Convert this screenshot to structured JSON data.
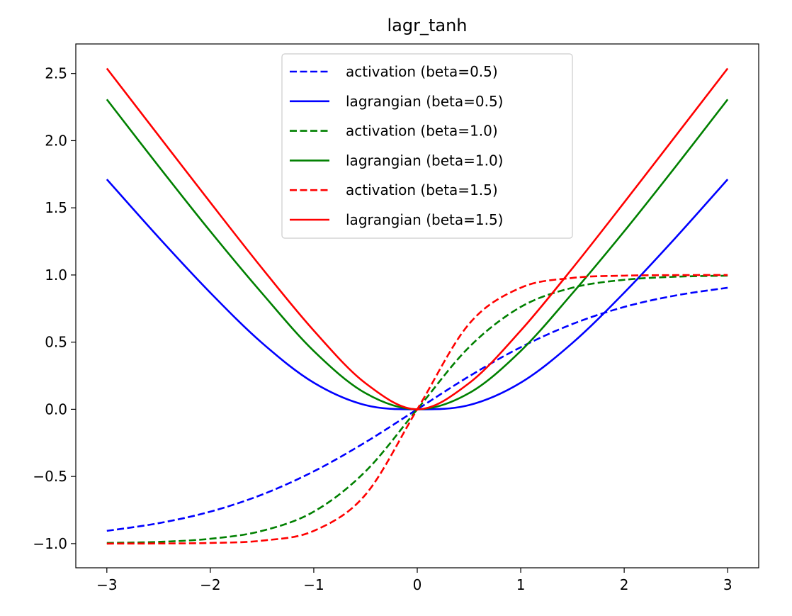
{
  "chart_data": {
    "type": "line",
    "title": "lagr_tanh",
    "xlabel": "",
    "ylabel": "",
    "xlim": [
      -3.3,
      3.3
    ],
    "ylim": [
      -1.18,
      2.72
    ],
    "grid": false,
    "legend_position": "upper center",
    "x_ticks": [
      -3,
      -2,
      -1,
      0,
      1,
      2,
      3
    ],
    "x_tick_labels": [
      "−3",
      "−2",
      "−1",
      "0",
      "1",
      "2",
      "3"
    ],
    "y_ticks": [
      -1.0,
      -0.5,
      0.0,
      0.5,
      1.0,
      1.5,
      2.0,
      2.5
    ],
    "y_tick_labels": [
      "−1.0",
      "−0.5",
      "0.0",
      "0.5",
      "1.0",
      "1.5",
      "2.0",
      "2.5"
    ],
    "x": [
      -3.0,
      -2.5,
      -2.0,
      -1.5,
      -1.0,
      -0.5,
      0.0,
      0.5,
      1.0,
      1.5,
      2.0,
      2.5,
      3.0
    ],
    "series": [
      {
        "name": "activation (beta=0.5)",
        "color": "#0000ff",
        "style": "dashed",
        "values": [
          -0.905,
          -0.848,
          -0.762,
          -0.635,
          -0.462,
          -0.245,
          0.0,
          0.245,
          0.462,
          0.635,
          0.762,
          0.848,
          0.905
        ]
      },
      {
        "name": "lagrangian (beta=0.5)",
        "color": "#0000ff",
        "style": "solid",
        "values": [
          1.712,
          1.28,
          0.868,
          0.494,
          0.198,
          0.031,
          0.0,
          0.031,
          0.198,
          0.494,
          0.868,
          1.28,
          1.712
        ]
      },
      {
        "name": "activation (beta=1.0)",
        "color": "#008000",
        "style": "dashed",
        "values": [
          -0.995,
          -0.987,
          -0.964,
          -0.905,
          -0.762,
          -0.462,
          0.0,
          0.462,
          0.762,
          0.905,
          0.964,
          0.987,
          0.995
        ]
      },
      {
        "name": "lagrangian (beta=1.0)",
        "color": "#008000",
        "style": "solid",
        "values": [
          2.307,
          1.81,
          1.325,
          0.864,
          0.434,
          0.12,
          0.0,
          0.12,
          0.434,
          0.864,
          1.325,
          1.81,
          2.307
        ]
      },
      {
        "name": "activation (beta=1.5)",
        "color": "#ff0000",
        "style": "dashed",
        "values": [
          -1.0,
          -0.999,
          -0.995,
          -0.978,
          -0.905,
          -0.635,
          0.0,
          0.635,
          0.905,
          0.978,
          0.995,
          0.999,
          1.0
        ]
      },
      {
        "name": "lagrangian (beta=1.5)",
        "color": "#ff0000",
        "style": "solid",
        "values": [
          2.538,
          2.038,
          1.54,
          1.05,
          0.586,
          0.194,
          0.0,
          0.194,
          0.586,
          1.05,
          1.54,
          2.038,
          2.538
        ]
      }
    ]
  }
}
